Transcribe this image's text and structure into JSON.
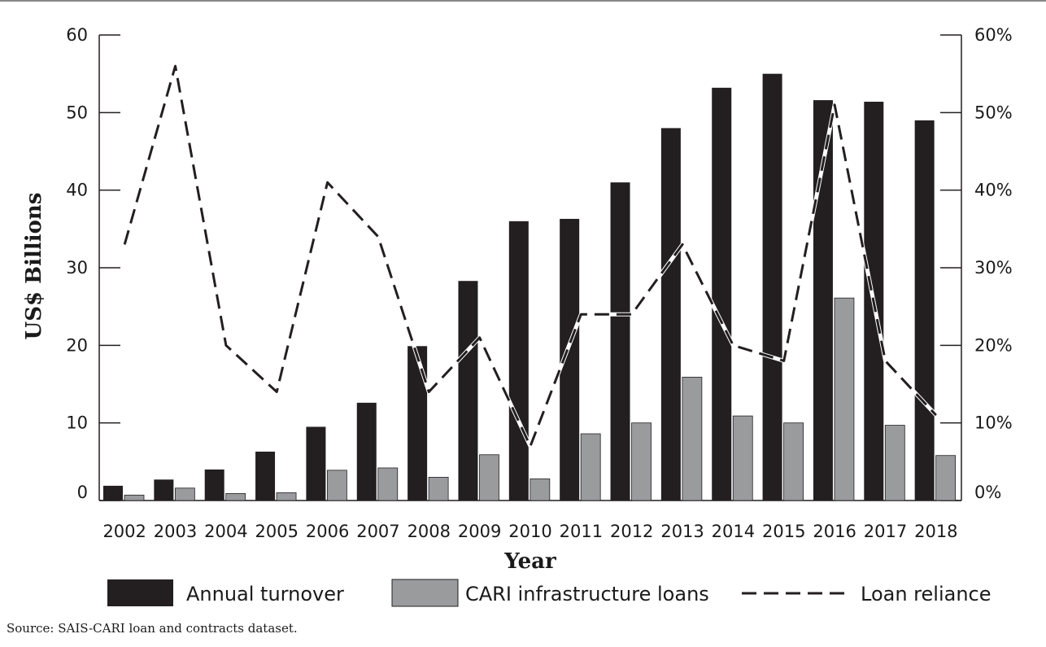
{
  "chart_data": {
    "type": "bar",
    "categories": [
      "2002",
      "2003",
      "2004",
      "2005",
      "2006",
      "2007",
      "2008",
      "2009",
      "2010",
      "2011",
      "2012",
      "2013",
      "2014",
      "2015",
      "2016",
      "2017",
      "2018"
    ],
    "series": [
      {
        "name": "Annual turnover",
        "kind": "bar",
        "axis": "left",
        "color": "#231f20",
        "values": [
          1.9,
          2.7,
          4.0,
          6.3,
          9.5,
          12.6,
          19.9,
          28.3,
          36.0,
          36.3,
          41.0,
          48.0,
          53.2,
          55.0,
          51.6,
          51.4,
          49.0
        ]
      },
      {
        "name": "CARI infrastructure loans",
        "kind": "bar",
        "axis": "right",
        "color": "#9a9b9d",
        "values": [
          0.7,
          1.6,
          0.9,
          1.0,
          3.9,
          4.2,
          3.0,
          5.9,
          2.8,
          8.6,
          10.0,
          15.9,
          10.9,
          10.0,
          26.1,
          9.7,
          5.8
        ]
      },
      {
        "name": "Loan reliance",
        "kind": "line",
        "style": "dashed",
        "axis": "right",
        "color": "#231f20",
        "values": [
          33,
          56,
          20,
          14,
          41,
          34,
          14,
          21,
          7,
          24,
          24,
          33,
          20,
          18,
          51,
          18,
          11
        ]
      }
    ],
    "ylim": [
      0,
      60
    ],
    "y2lim": [
      0,
      60
    ],
    "yticks": [
      "0",
      "10",
      "20",
      "30",
      "40",
      "50",
      "60"
    ],
    "y2ticks": [
      "0%",
      "10%",
      "20%",
      "30%",
      "40%",
      "50%",
      "60%"
    ],
    "xlabel": "Year",
    "ylabel": "US$ Billions",
    "legend": "bottom",
    "grid": false
  },
  "source": "Source: SAIS-CARI loan and contracts dataset."
}
